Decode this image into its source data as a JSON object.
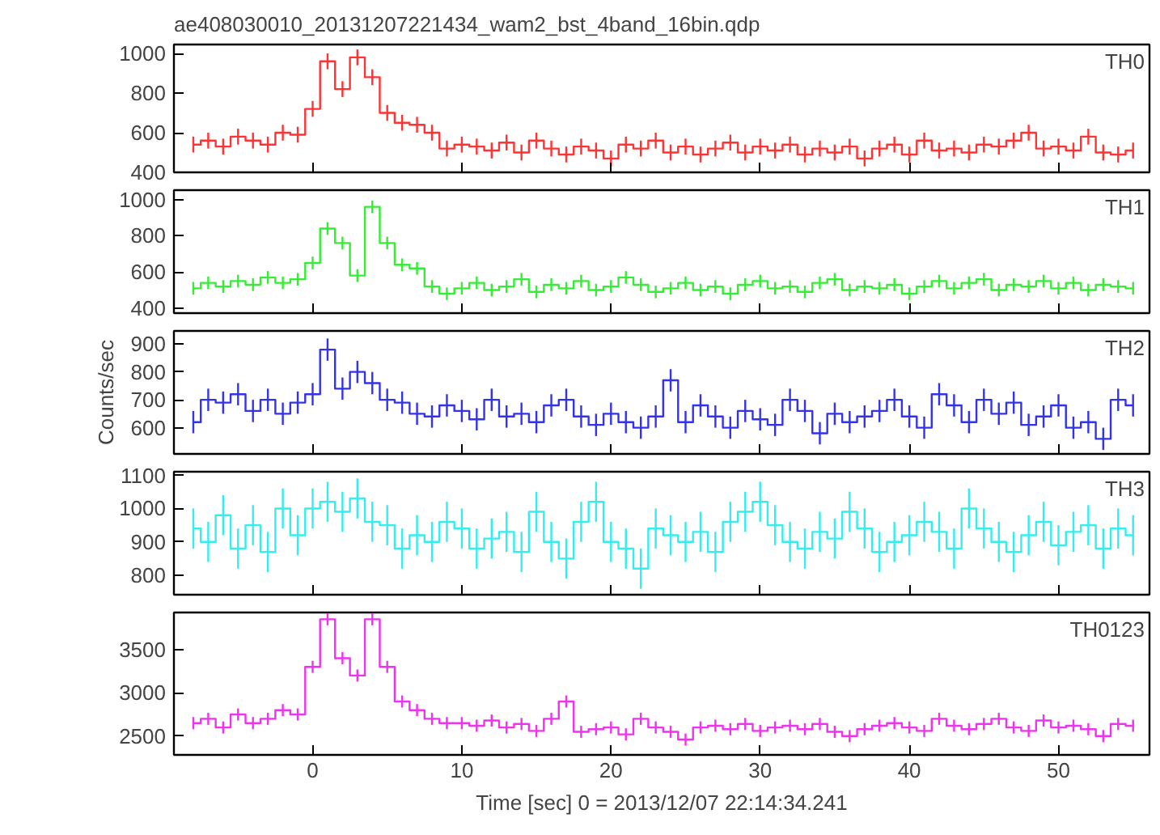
{
  "chart_data": [
    {
      "type": "step",
      "title": "ae408030010_20131207221434_wam2_bst_4band_16bin.qdp",
      "annotations": [
        "TH0"
      ],
      "color": "#ff3333",
      "x": [
        -8,
        -7,
        -6,
        -5,
        -4,
        -3,
        -2,
        -1,
        0,
        1,
        2,
        3,
        4,
        5,
        6,
        7,
        8,
        9,
        10,
        11,
        12,
        13,
        14,
        15,
        16,
        17,
        18,
        19,
        20,
        21,
        22,
        23,
        24,
        25,
        26,
        27,
        28,
        29,
        30,
        31,
        32,
        33,
        34,
        35,
        36,
        37,
        38,
        39,
        40,
        41,
        42,
        43,
        44,
        45,
        46,
        47,
        48,
        49,
        50,
        51,
        52,
        53,
        54,
        55
      ],
      "values": [
        540,
        560,
        530,
        580,
        560,
        540,
        600,
        590,
        720,
        960,
        820,
        980,
        880,
        700,
        650,
        640,
        600,
        520,
        540,
        530,
        510,
        550,
        500,
        560,
        520,
        490,
        530,
        510,
        470,
        540,
        520,
        560,
        500,
        530,
        490,
        520,
        550,
        500,
        530,
        510,
        540,
        490,
        520,
        500,
        530,
        470,
        520,
        540,
        490,
        560,
        510,
        520,
        500,
        540,
        530,
        560,
        600,
        520,
        530,
        510,
        580,
        500,
        490,
        510
      ],
      "errors": [
        40,
        40,
        40,
        40,
        40,
        40,
        40,
        40,
        40,
        40,
        40,
        40,
        40,
        40,
        40,
        40,
        40,
        40,
        40,
        40,
        40,
        40,
        40,
        40,
        40,
        40,
        40,
        40,
        40,
        40,
        40,
        40,
        40,
        40,
        40,
        40,
        40,
        40,
        40,
        40,
        40,
        40,
        40,
        40,
        40,
        40,
        40,
        40,
        40,
        40,
        40,
        40,
        40,
        40,
        40,
        40,
        40,
        40,
        40,
        40,
        40,
        40,
        40,
        40
      ],
      "xlim": [
        -9.3,
        56.1
      ],
      "xticks": [
        0,
        10,
        20,
        30,
        40,
        50
      ],
      "ylim": [
        400,
        1045
      ],
      "yticks": [
        400,
        600,
        800,
        1000
      ],
      "tick_labels": "y"
    },
    {
      "type": "step",
      "annotations": [
        "TH1"
      ],
      "color": "#33ee33",
      "x": [
        -8,
        -7,
        -6,
        -5,
        -4,
        -3,
        -2,
        -1,
        0,
        1,
        2,
        3,
        4,
        5,
        6,
        7,
        8,
        9,
        10,
        11,
        12,
        13,
        14,
        15,
        16,
        17,
        18,
        19,
        20,
        21,
        22,
        23,
        24,
        25,
        26,
        27,
        28,
        29,
        30,
        31,
        32,
        33,
        34,
        35,
        36,
        37,
        38,
        39,
        40,
        41,
        42,
        43,
        44,
        45,
        46,
        47,
        48,
        49,
        50,
        51,
        52,
        53,
        54,
        55
      ],
      "values": [
        510,
        540,
        520,
        550,
        530,
        570,
        540,
        560,
        650,
        840,
        760,
        580,
        960,
        760,
        640,
        620,
        520,
        480,
        510,
        540,
        500,
        520,
        560,
        490,
        530,
        510,
        550,
        500,
        520,
        570,
        530,
        490,
        510,
        540,
        500,
        520,
        480,
        530,
        550,
        510,
        520,
        490,
        540,
        560,
        500,
        520,
        510,
        530,
        480,
        520,
        550,
        510,
        540,
        560,
        500,
        530,
        520,
        550,
        510,
        540,
        500,
        530,
        520,
        510
      ],
      "errors": [
        35,
        35,
        35,
        35,
        35,
        35,
        35,
        35,
        35,
        35,
        35,
        35,
        35,
        35,
        35,
        35,
        35,
        35,
        35,
        35,
        35,
        35,
        35,
        35,
        35,
        35,
        35,
        35,
        35,
        35,
        35,
        35,
        35,
        35,
        35,
        35,
        35,
        35,
        35,
        35,
        35,
        35,
        35,
        35,
        35,
        35,
        35,
        35,
        35,
        35,
        35,
        35,
        35,
        35,
        35,
        35,
        35,
        35,
        35,
        35,
        35,
        35,
        35,
        35
      ],
      "xlim": [
        -9.3,
        56.1
      ],
      "xticks": [
        0,
        10,
        20,
        30,
        40,
        50
      ],
      "ylim": [
        373,
        1052
      ],
      "yticks": [
        400,
        600,
        800,
        1000
      ],
      "tick_labels": "y"
    },
    {
      "type": "step",
      "ylabel": "Counts/sec",
      "annotations": [
        "TH2"
      ],
      "color": "#3333ee",
      "x": [
        -8,
        -7,
        -6,
        -5,
        -4,
        -3,
        -2,
        -1,
        0,
        1,
        2,
        3,
        4,
        5,
        6,
        7,
        8,
        9,
        10,
        11,
        12,
        13,
        14,
        15,
        16,
        17,
        18,
        19,
        20,
        21,
        22,
        23,
        24,
        25,
        26,
        27,
        28,
        29,
        30,
        31,
        32,
        33,
        34,
        35,
        36,
        37,
        38,
        39,
        40,
        41,
        42,
        43,
        44,
        45,
        46,
        47,
        48,
        49,
        50,
        51,
        52,
        53,
        54,
        55
      ],
      "values": [
        620,
        700,
        690,
        720,
        660,
        700,
        650,
        690,
        720,
        880,
        740,
        800,
        760,
        700,
        690,
        650,
        640,
        680,
        660,
        630,
        700,
        640,
        650,
        620,
        680,
        700,
        640,
        610,
        650,
        620,
        600,
        640,
        770,
        620,
        680,
        640,
        600,
        660,
        630,
        610,
        700,
        660,
        580,
        650,
        620,
        640,
        660,
        700,
        640,
        600,
        720,
        680,
        620,
        700,
        650,
        690,
        610,
        640,
        680,
        600,
        620,
        560,
        700,
        680
      ],
      "errors": [
        40,
        40,
        40,
        40,
        40,
        40,
        40,
        40,
        40,
        40,
        40,
        40,
        40,
        40,
        40,
        40,
        40,
        40,
        40,
        40,
        40,
        40,
        40,
        40,
        40,
        40,
        40,
        40,
        40,
        40,
        40,
        40,
        40,
        40,
        40,
        40,
        40,
        40,
        40,
        40,
        40,
        40,
        40,
        40,
        40,
        40,
        40,
        40,
        40,
        40,
        40,
        40,
        40,
        40,
        40,
        40,
        40,
        40,
        40,
        40,
        40,
        40,
        40,
        40
      ],
      "xlim": [
        -9.3,
        56.1
      ],
      "xticks": [
        0,
        10,
        20,
        30,
        40,
        50
      ],
      "ylim": [
        506,
        947
      ],
      "yticks": [
        600,
        700,
        800,
        900
      ],
      "tick_labels": "y"
    },
    {
      "type": "step",
      "annotations": [
        "TH3"
      ],
      "color": "#33eeee",
      "x": [
        -8,
        -7,
        -6,
        -5,
        -4,
        -3,
        -2,
        -1,
        0,
        1,
        2,
        3,
        4,
        5,
        6,
        7,
        8,
        9,
        10,
        11,
        12,
        13,
        14,
        15,
        16,
        17,
        18,
        19,
        20,
        21,
        22,
        23,
        24,
        25,
        26,
        27,
        28,
        29,
        30,
        31,
        32,
        33,
        34,
        35,
        36,
        37,
        38,
        39,
        40,
        41,
        42,
        43,
        44,
        45,
        46,
        47,
        48,
        49,
        50,
        51,
        52,
        53,
        54,
        55
      ],
      "values": [
        940,
        900,
        980,
        880,
        950,
        870,
        1000,
        920,
        1000,
        1020,
        990,
        1030,
        960,
        950,
        880,
        920,
        900,
        960,
        940,
        880,
        910,
        930,
        870,
        990,
        900,
        850,
        960,
        1020,
        900,
        880,
        820,
        940,
        920,
        900,
        930,
        870,
        960,
        990,
        1020,
        950,
        900,
        880,
        930,
        910,
        990,
        940,
        870,
        900,
        920,
        960,
        930,
        880,
        1000,
        940,
        900,
        870,
        920,
        960,
        890,
        930,
        950,
        880,
        940,
        920
      ],
      "errors": [
        60,
        60,
        60,
        60,
        60,
        60,
        60,
        60,
        60,
        60,
        60,
        60,
        60,
        60,
        60,
        60,
        60,
        60,
        60,
        60,
        60,
        60,
        60,
        60,
        60,
        60,
        60,
        60,
        60,
        60,
        60,
        60,
        60,
        60,
        60,
        60,
        60,
        60,
        60,
        60,
        60,
        60,
        60,
        60,
        60,
        60,
        60,
        60,
        60,
        60,
        60,
        60,
        60,
        60,
        60,
        60,
        60,
        60,
        60,
        60,
        60,
        60,
        60,
        60
      ],
      "xlim": [
        -9.3,
        56.1
      ],
      "xticks": [
        0,
        10,
        20,
        30,
        40,
        50
      ],
      "ylim": [
        742,
        1110
      ],
      "yticks": [
        800,
        900,
        1000,
        1100
      ],
      "tick_labels": "y"
    },
    {
      "type": "step",
      "xlabel": "Time [sec] 0 = 2013/12/07 22:14:34.241",
      "annotations": [
        "TH0123"
      ],
      "color": "#ee33ee",
      "x": [
        -8,
        -7,
        -6,
        -5,
        -4,
        -3,
        -2,
        -1,
        0,
        1,
        2,
        3,
        4,
        5,
        6,
        7,
        8,
        9,
        10,
        11,
        12,
        13,
        14,
        15,
        16,
        17,
        18,
        19,
        20,
        21,
        22,
        23,
        24,
        25,
        26,
        27,
        28,
        29,
        30,
        31,
        32,
        33,
        34,
        35,
        36,
        37,
        38,
        39,
        40,
        41,
        42,
        43,
        44,
        45,
        46,
        47,
        48,
        49,
        50,
        51,
        52,
        53,
        54,
        55
      ],
      "values": [
        2650,
        2700,
        2600,
        2750,
        2650,
        2700,
        2800,
        2750,
        3300,
        3850,
        3400,
        3200,
        3850,
        3300,
        2900,
        2800,
        2700,
        2650,
        2650,
        2620,
        2680,
        2600,
        2640,
        2560,
        2700,
        2900,
        2550,
        2580,
        2600,
        2520,
        2700,
        2600,
        2550,
        2460,
        2600,
        2620,
        2580,
        2640,
        2560,
        2600,
        2620,
        2580,
        2640,
        2550,
        2500,
        2580,
        2620,
        2650,
        2600,
        2560,
        2700,
        2620,
        2580,
        2640,
        2700,
        2600,
        2560,
        2680,
        2600,
        2620,
        2580,
        2500,
        2640,
        2620
      ],
      "errors": [
        70,
        70,
        70,
        70,
        70,
        70,
        70,
        70,
        70,
        70,
        70,
        70,
        70,
        70,
        70,
        70,
        70,
        70,
        70,
        70,
        70,
        70,
        70,
        70,
        70,
        70,
        70,
        70,
        70,
        70,
        70,
        70,
        70,
        70,
        70,
        70,
        70,
        70,
        70,
        70,
        70,
        70,
        70,
        70,
        70,
        70,
        70,
        70,
        70,
        70,
        70,
        70,
        70,
        70,
        70,
        70,
        70,
        70,
        70,
        70,
        70,
        70,
        70,
        70
      ],
      "xlim": [
        -9.3,
        56.1
      ],
      "xticks": [
        0,
        10,
        20,
        30,
        40,
        50
      ],
      "ylim": [
        2283,
        3928
      ],
      "yticks": [
        2500,
        3000,
        3500
      ]
    }
  ]
}
